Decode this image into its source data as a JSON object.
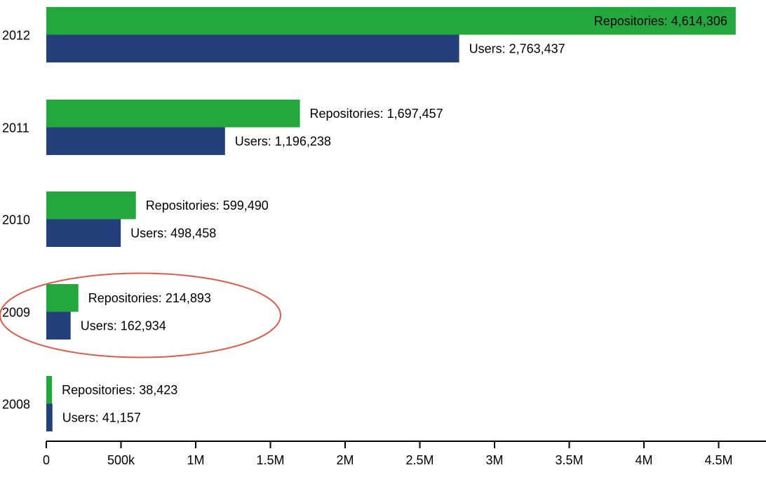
{
  "chart_data": {
    "type": "bar",
    "orientation": "horizontal",
    "categories": [
      "2012",
      "2011",
      "2010",
      "2009",
      "2008"
    ],
    "series": [
      {
        "name": "Repositories",
        "values": [
          4614306,
          1697457,
          599490,
          214893,
          38423
        ],
        "labels": [
          "Repositories: 4,614,306",
          "Repositories: 1,697,457",
          "Repositories: 599,490",
          "Repositories: 214,893",
          "Repositories: 38,423"
        ]
      },
      {
        "name": "Users",
        "values": [
          2763437,
          1196238,
          498458,
          162934,
          41157
        ],
        "labels": [
          "Users: 2,763,437",
          "Users: 1,196,238",
          "Users: 498,458",
          "Users: 162,934",
          "Users: 41,157"
        ]
      }
    ],
    "xlim": [
      0,
      4800000
    ],
    "xticks": [
      0,
      500000,
      1000000,
      1500000,
      2000000,
      2500000,
      3000000,
      3500000,
      4000000,
      4500000
    ],
    "xtick_labels": [
      "0",
      "500k",
      "1M",
      "1.5M",
      "2M",
      "2.5M",
      "3M",
      "3.5M",
      "4M",
      "4.5M"
    ],
    "grid": false,
    "highlighted_category": "2009"
  },
  "colors": {
    "repositories": "#24a83d",
    "users": "#24407a",
    "highlight": "#e05a4b",
    "axis": "#000000"
  }
}
